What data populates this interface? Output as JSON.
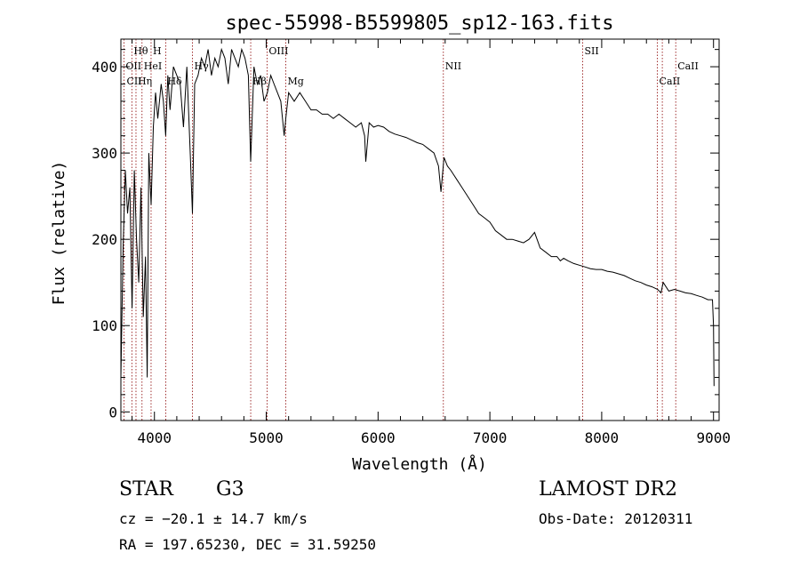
{
  "chart_data": {
    "type": "line",
    "title": "spec-55998-B5599805_sp12-163.fits",
    "xlabel": "Wavelength (Å)",
    "ylabel": "Flux (relative)",
    "xlim": [
      3700,
      9050
    ],
    "ylim": [
      -10,
      432
    ],
    "xticks": [
      4000,
      5000,
      6000,
      7000,
      8000,
      9000
    ],
    "yticks": [
      0,
      100,
      200,
      300,
      400
    ],
    "grid": false,
    "series": [
      {
        "x": [
          3700,
          3720,
          3740,
          3760,
          3780,
          3800,
          3820,
          3840,
          3860,
          3880,
          3900,
          3920,
          3935,
          3950,
          3970,
          3990,
          4010,
          4030,
          4060,
          4080,
          4101,
          4120,
          4140,
          4170,
          4200,
          4230,
          4260,
          4290,
          4320,
          4340,
          4360,
          4390,
          4420,
          4450,
          4480,
          4510,
          4540,
          4570,
          4600,
          4630,
          4660,
          4690,
          4720,
          4750,
          4780,
          4810,
          4840,
          4861,
          4890,
          4920,
          4950,
          4980,
          5010,
          5040,
          5070,
          5100,
          5130,
          5160,
          5175,
          5200,
          5250,
          5300,
          5350,
          5400,
          5450,
          5500,
          5550,
          5600,
          5650,
          5700,
          5750,
          5800,
          5850,
          5880,
          5890,
          5920,
          5960,
          6000,
          6050,
          6100,
          6150,
          6200,
          6250,
          6300,
          6350,
          6400,
          6450,
          6500,
          6540,
          6563,
          6590,
          6620,
          6650,
          6700,
          6750,
          6800,
          6850,
          6900,
          6950,
          7000,
          7050,
          7100,
          7150,
          7200,
          7250,
          7300,
          7350,
          7400,
          7450,
          7500,
          7550,
          7600,
          7630,
          7660,
          7700,
          7750,
          7800,
          7850,
          7900,
          7950,
          8000,
          8050,
          8100,
          8150,
          8200,
          8250,
          8300,
          8350,
          8400,
          8450,
          8500,
          8530,
          8550,
          8600,
          8650,
          8700,
          8750,
          8800,
          8850,
          8900,
          8950,
          8990,
          9000,
          9005
        ],
        "y": [
          40,
          190,
          280,
          230,
          260,
          120,
          280,
          200,
          150,
          260,
          110,
          180,
          40,
          300,
          240,
          330,
          370,
          340,
          380,
          360,
          320,
          390,
          350,
          400,
          390,
          380,
          330,
          400,
          300,
          230,
          380,
          390,
          410,
          400,
          420,
          390,
          410,
          400,
          420,
          410,
          380,
          420,
          410,
          400,
          420,
          410,
          390,
          290,
          400,
          380,
          390,
          360,
          370,
          390,
          380,
          370,
          360,
          320,
          340,
          370,
          360,
          370,
          360,
          350,
          350,
          345,
          345,
          340,
          345,
          340,
          335,
          330,
          335,
          320,
          290,
          335,
          330,
          332,
          330,
          325,
          322,
          320,
          318,
          315,
          312,
          310,
          305,
          300,
          285,
          255,
          295,
          285,
          280,
          270,
          260,
          250,
          240,
          230,
          225,
          220,
          210,
          205,
          200,
          200,
          198,
          196,
          200,
          208,
          190,
          185,
          180,
          180,
          175,
          178,
          175,
          172,
          170,
          168,
          166,
          165,
          165,
          163,
          162,
          160,
          158,
          155,
          152,
          150,
          147,
          145,
          142,
          138,
          150,
          140,
          142,
          140,
          138,
          137,
          135,
          133,
          130,
          130,
          100,
          30
        ]
      }
    ],
    "line_labels": [
      {
        "label": "Hθ",
        "x": 3798,
        "row": 1
      },
      {
        "label": "H",
        "x": 3970,
        "row": 1
      },
      {
        "label": "OII",
        "x": 3727,
        "row": 2
      },
      {
        "label": "HeI",
        "x": 3889,
        "row": 2
      },
      {
        "label": "CII",
        "x": 3736,
        "row": 3
      },
      {
        "label": "Hη",
        "x": 3835,
        "row": 3
      },
      {
        "label": "Hδ",
        "x": 4101,
        "row": 3
      },
      {
        "label": "Hγ",
        "x": 4340,
        "row": 2
      },
      {
        "label": "OIII",
        "x": 5007,
        "row": 1
      },
      {
        "label": "Hβ",
        "x": 4861,
        "row": 3
      },
      {
        "label": "Mg",
        "x": 5175,
        "row": 3
      },
      {
        "label": "NII",
        "x": 6584,
        "row": 2
      },
      {
        "label": "SII",
        "x": 7830,
        "row": 1
      },
      {
        "label": "CaII",
        "x": 8662,
        "row": 2
      },
      {
        "label": "CaII",
        "x": 8498,
        "row": 3
      }
    ],
    "marker_lines_x": [
      3727,
      3798,
      3835,
      3889,
      3970,
      4101,
      4340,
      4861,
      5007,
      5175,
      6584,
      7830,
      8498,
      8542,
      8662
    ]
  },
  "info": {
    "object_class": "STAR",
    "subclass": "G3",
    "survey": "LAMOST DR2",
    "cz": "cz = −20.1 ± 14.7 km/s",
    "obs_date": "Obs-Date: 20120311",
    "coords": "RA = 197.65230, DEC =  31.59250"
  },
  "colors": {
    "spectrum": "#000000",
    "marker_lines": "#8b0000",
    "axes": "#000000"
  }
}
